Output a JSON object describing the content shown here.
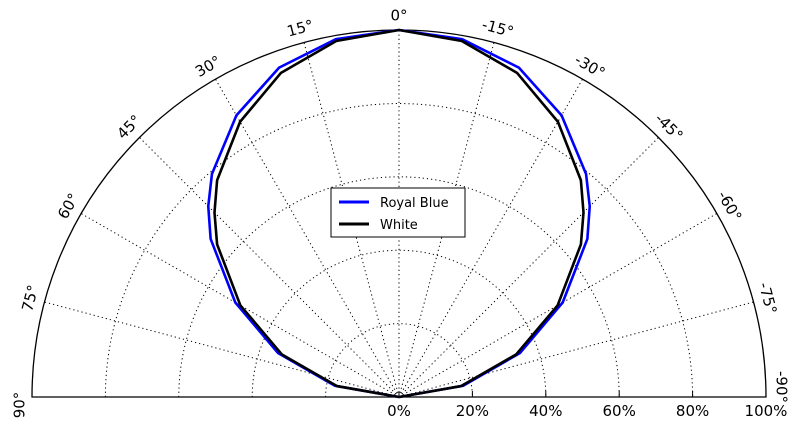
{
  "chart_data": {
    "type": "polar-line",
    "title": "",
    "angle_unit": "degrees",
    "angle_range": [
      -90,
      90
    ],
    "radius_range": [
      0,
      100
    ],
    "radius_unit": "%",
    "grid": true,
    "angle_ticks": [
      {
        "value": 90,
        "label": "90°"
      },
      {
        "value": 75,
        "label": "75°"
      },
      {
        "value": 60,
        "label": "60°"
      },
      {
        "value": 45,
        "label": "45°"
      },
      {
        "value": 30,
        "label": "30°"
      },
      {
        "value": 15,
        "label": "15°"
      },
      {
        "value": 0,
        "label": "0°"
      },
      {
        "value": -15,
        "label": "-15°"
      },
      {
        "value": -30,
        "label": "-30°"
      },
      {
        "value": -45,
        "label": "-45°"
      },
      {
        "value": -60,
        "label": "-60°"
      },
      {
        "value": -75,
        "label": "-75°"
      },
      {
        "value": -90,
        "label": "-90°"
      }
    ],
    "radius_ticks": [
      {
        "value": 0,
        "label": "0%"
      },
      {
        "value": 20,
        "label": "20%"
      },
      {
        "value": 40,
        "label": "40%"
      },
      {
        "value": 60,
        "label": "60%"
      },
      {
        "value": 80,
        "label": "80%"
      },
      {
        "value": 100,
        "label": "100%"
      }
    ],
    "legend": {
      "position": "center"
    },
    "series": [
      {
        "name": "Royal Blue",
        "color": "#0000ff",
        "theta": [
          90,
          80,
          70,
          60,
          50,
          45,
          40,
          30,
          20,
          10,
          0,
          -10,
          -20,
          -30,
          -40,
          -45,
          -50,
          -60,
          -70,
          -80,
          -90
        ],
        "r": [
          0,
          17.8,
          35.1,
          51.5,
          67,
          73.5,
          79.3,
          88.6,
          95.5,
          99,
          100,
          99,
          95.5,
          88.6,
          79.3,
          73.5,
          67,
          51.5,
          35.1,
          17.8,
          0
        ]
      },
      {
        "name": "White",
        "color": "#000000",
        "theta": [
          90,
          80,
          70,
          60,
          50,
          45,
          40,
          30,
          20,
          10,
          0,
          -10,
          -20,
          -30,
          -40,
          -45,
          -50,
          -60,
          -70,
          -80,
          -90
        ],
        "r": [
          0,
          17.2,
          34,
          49.9,
          64.7,
          71.1,
          77.1,
          86.6,
          94,
          98.5,
          100,
          98.5,
          94,
          86.6,
          77.1,
          71.1,
          64.7,
          49.9,
          34,
          17.2,
          0
        ]
      }
    ]
  }
}
